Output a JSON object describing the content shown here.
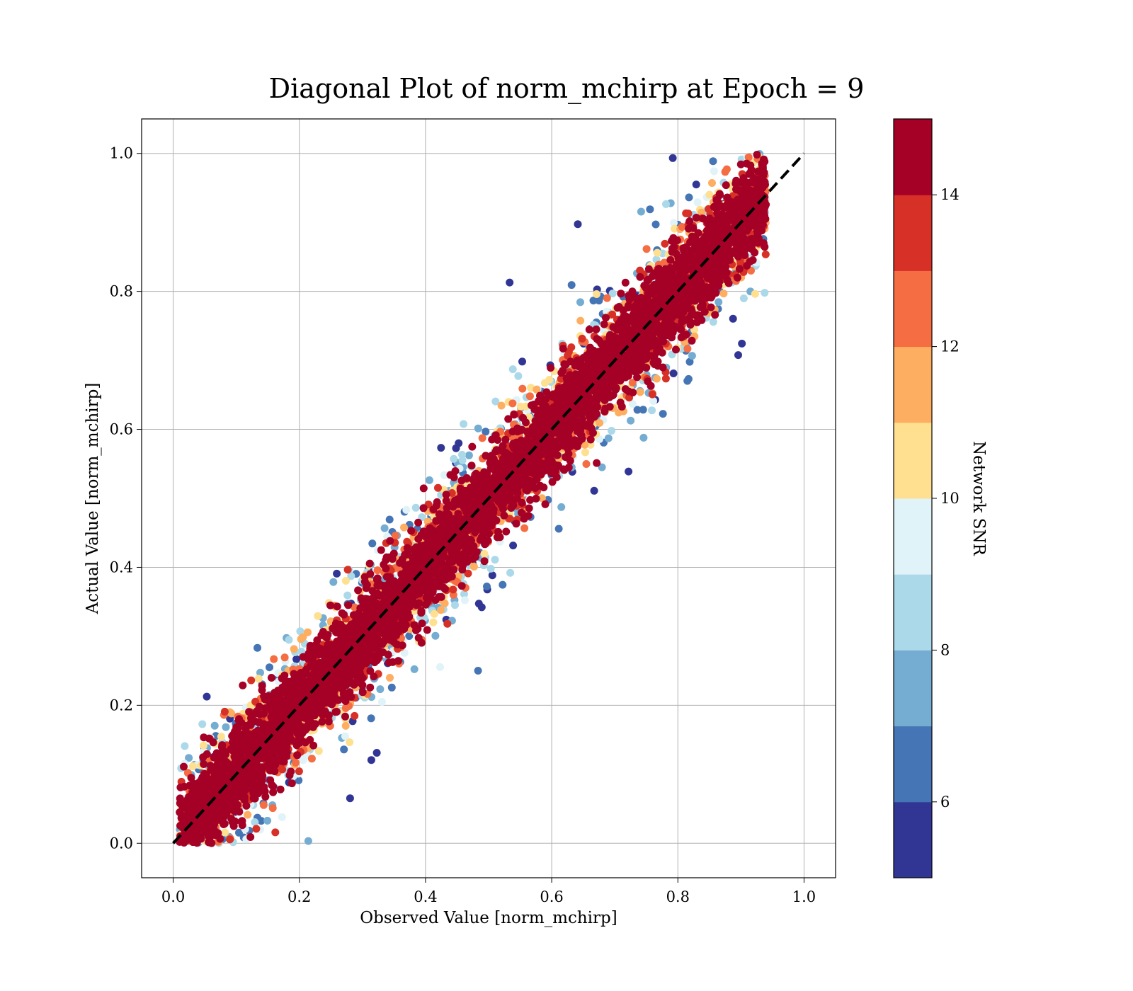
{
  "chart_data": {
    "type": "scatter",
    "title": "Diagonal Plot of norm_mchirp at Epoch = 9",
    "xlabel": "Observed Value [norm_mchirp]",
    "ylabel": "Actual Value [norm_mchirp]",
    "xlim": [
      -0.05,
      1.05
    ],
    "ylim": [
      -0.05,
      1.05
    ],
    "xticks": [
      "0.0",
      "0.2",
      "0.4",
      "0.6",
      "0.8",
      "1.0"
    ],
    "yticks": [
      "0.0",
      "0.2",
      "0.4",
      "0.6",
      "0.8",
      "1.0"
    ],
    "grid": true,
    "reference_line": {
      "style": "dashed",
      "color": "#000000",
      "x": [
        0,
        1
      ],
      "y": [
        0,
        1
      ]
    },
    "colorbar": {
      "label": "Network SNR",
      "range": [
        5,
        15
      ],
      "ticks": [
        "6",
        "8",
        "10",
        "12",
        "14"
      ],
      "bins": 10,
      "colors": [
        "#313695",
        "#4575b4",
        "#74add1",
        "#abd9e9",
        "#e0f3f8",
        "#fee090",
        "#fdae61",
        "#f46d43",
        "#d73027",
        "#a50026"
      ]
    },
    "distribution": {
      "point_count": 9000,
      "x_observed_range": [
        0.01,
        0.94
      ],
      "actual_range": [
        0.0,
        1.0
      ],
      "note_high_snr_along_diagonal": true
    }
  }
}
